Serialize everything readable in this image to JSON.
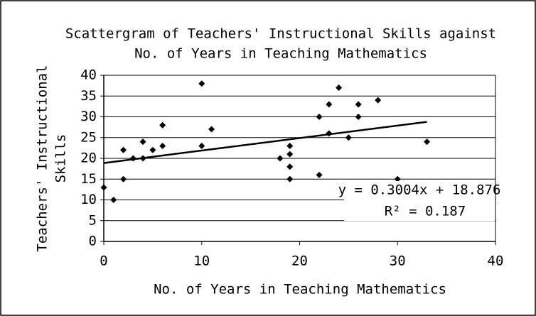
{
  "chart_data": {
    "type": "scatter",
    "title": [
      "Scattergram of Teachers' Instructional Skills against",
      "No. of Years in Teaching Mathematics"
    ],
    "x_label": "No. of Years in Teaching Mathematics",
    "y_label": [
      "Teachers' Instructional",
      "Skills"
    ],
    "x": [
      0,
      1,
      2,
      2,
      3,
      4,
      4,
      5,
      6,
      6,
      10,
      10,
      11,
      18,
      19,
      19,
      19,
      19,
      22,
      22,
      23,
      23,
      24,
      25,
      26,
      26,
      28,
      30,
      33
    ],
    "values": [
      13,
      10,
      22,
      15,
      20,
      24,
      20,
      22,
      28,
      23,
      38,
      23,
      27,
      20,
      23,
      21,
      18,
      15,
      30,
      16,
      33,
      26,
      37,
      25,
      33,
      30,
      34,
      15,
      24
    ],
    "color": "#000000",
    "xlim": [
      0,
      40
    ],
    "xticks": [
      0,
      10,
      20,
      30,
      40
    ],
    "ylim": [
      0,
      40
    ],
    "yticks": [
      0,
      5,
      10,
      15,
      20,
      25,
      30,
      35,
      40
    ],
    "grid": true,
    "trendline": {
      "slope": 0.3004,
      "intercept": 18.876,
      "equation": "y = 0.3004x + 18.876",
      "r2_label": "R² = 0.187"
    }
  }
}
